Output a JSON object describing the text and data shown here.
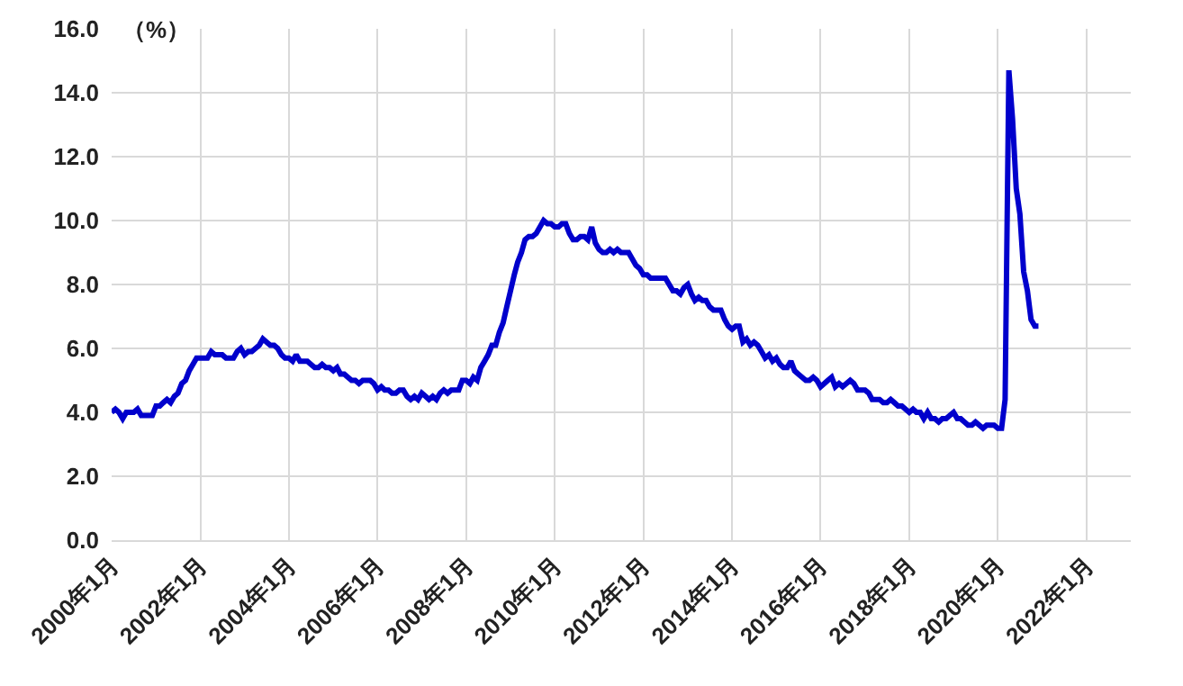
{
  "chart_data": {
    "type": "line",
    "ylabel": "（%）",
    "xlim": [
      "2000-01",
      "2023-01"
    ],
    "xticks": [
      {
        "value": "2000-01",
        "label": "2000年1月"
      },
      {
        "value": "2002-01",
        "label": "2002年1月"
      },
      {
        "value": "2004-01",
        "label": "2004年1月"
      },
      {
        "value": "2006-01",
        "label": "2006年1月"
      },
      {
        "value": "2008-01",
        "label": "2008年1月"
      },
      {
        "value": "2010-01",
        "label": "2010年1月"
      },
      {
        "value": "2012-01",
        "label": "2012年1月"
      },
      {
        "value": "2014-01",
        "label": "2014年1月"
      },
      {
        "value": "2016-01",
        "label": "2016年1月"
      },
      {
        "value": "2018-01",
        "label": "2018年1月"
      },
      {
        "value": "2020-01",
        "label": "2020年1月"
      },
      {
        "value": "2022-01",
        "label": "2022年1月"
      }
    ],
    "ylim": [
      0,
      16
    ],
    "yticks": [
      {
        "value": 0,
        "label": "0.0"
      },
      {
        "value": 2,
        "label": "2.0"
      },
      {
        "value": 4,
        "label": "4.0"
      },
      {
        "value": 6,
        "label": "6.0"
      },
      {
        "value": 8,
        "label": "8.0"
      },
      {
        "value": 10,
        "label": "10.0"
      },
      {
        "value": 12,
        "label": "12.0"
      },
      {
        "value": 14,
        "label": "14.0"
      },
      {
        "value": 16,
        "label": "16.0"
      }
    ],
    "grid": true,
    "marker": "none",
    "line_style": "solid",
    "series": [
      {
        "color": "#0000cc",
        "x": [
          "2000-01",
          "2000-02",
          "2000-03",
          "2000-04",
          "2000-05",
          "2000-06",
          "2000-07",
          "2000-08",
          "2000-09",
          "2000-10",
          "2000-11",
          "2000-12",
          "2001-01",
          "2001-02",
          "2001-03",
          "2001-04",
          "2001-05",
          "2001-06",
          "2001-07",
          "2001-08",
          "2001-09",
          "2001-10",
          "2001-11",
          "2001-12",
          "2002-01",
          "2002-02",
          "2002-03",
          "2002-04",
          "2002-05",
          "2002-06",
          "2002-07",
          "2002-08",
          "2002-09",
          "2002-10",
          "2002-11",
          "2002-12",
          "2003-01",
          "2003-02",
          "2003-03",
          "2003-04",
          "2003-05",
          "2003-06",
          "2003-07",
          "2003-08",
          "2003-09",
          "2003-10",
          "2003-11",
          "2003-12",
          "2004-01",
          "2004-02",
          "2004-03",
          "2004-04",
          "2004-05",
          "2004-06",
          "2004-07",
          "2004-08",
          "2004-09",
          "2004-10",
          "2004-11",
          "2004-12",
          "2005-01",
          "2005-02",
          "2005-03",
          "2005-04",
          "2005-05",
          "2005-06",
          "2005-07",
          "2005-08",
          "2005-09",
          "2005-10",
          "2005-11",
          "2005-12",
          "2006-01",
          "2006-02",
          "2006-03",
          "2006-04",
          "2006-05",
          "2006-06",
          "2006-07",
          "2006-08",
          "2006-09",
          "2006-10",
          "2006-11",
          "2006-12",
          "2007-01",
          "2007-02",
          "2007-03",
          "2007-04",
          "2007-05",
          "2007-06",
          "2007-07",
          "2007-08",
          "2007-09",
          "2007-10",
          "2007-11",
          "2007-12",
          "2008-01",
          "2008-02",
          "2008-03",
          "2008-04",
          "2008-05",
          "2008-06",
          "2008-07",
          "2008-08",
          "2008-09",
          "2008-10",
          "2008-11",
          "2008-12",
          "2009-01",
          "2009-02",
          "2009-03",
          "2009-04",
          "2009-05",
          "2009-06",
          "2009-07",
          "2009-08",
          "2009-09",
          "2009-10",
          "2009-11",
          "2009-12",
          "2010-01",
          "2010-02",
          "2010-03",
          "2010-04",
          "2010-05",
          "2010-06",
          "2010-07",
          "2010-08",
          "2010-09",
          "2010-10",
          "2010-11",
          "2010-12",
          "2011-01",
          "2011-02",
          "2011-03",
          "2011-04",
          "2011-05",
          "2011-06",
          "2011-07",
          "2011-08",
          "2011-09",
          "2011-10",
          "2011-11",
          "2011-12",
          "2012-01",
          "2012-02",
          "2012-03",
          "2012-04",
          "2012-05",
          "2012-06",
          "2012-07",
          "2012-08",
          "2012-09",
          "2012-10",
          "2012-11",
          "2012-12",
          "2013-01",
          "2013-02",
          "2013-03",
          "2013-04",
          "2013-05",
          "2013-06",
          "2013-07",
          "2013-08",
          "2013-09",
          "2013-10",
          "2013-11",
          "2013-12",
          "2014-01",
          "2014-02",
          "2014-03",
          "2014-04",
          "2014-05",
          "2014-06",
          "2014-07",
          "2014-08",
          "2014-09",
          "2014-10",
          "2014-11",
          "2014-12",
          "2015-01",
          "2015-02",
          "2015-03",
          "2015-04",
          "2015-05",
          "2015-06",
          "2015-07",
          "2015-08",
          "2015-09",
          "2015-10",
          "2015-11",
          "2015-12",
          "2016-01",
          "2016-02",
          "2016-03",
          "2016-04",
          "2016-05",
          "2016-06",
          "2016-07",
          "2016-08",
          "2016-09",
          "2016-10",
          "2016-11",
          "2016-12",
          "2017-01",
          "2017-02",
          "2017-03",
          "2017-04",
          "2017-05",
          "2017-06",
          "2017-07",
          "2017-08",
          "2017-09",
          "2017-10",
          "2017-11",
          "2017-12",
          "2018-01",
          "2018-02",
          "2018-03",
          "2018-04",
          "2018-05",
          "2018-06",
          "2018-07",
          "2018-08",
          "2018-09",
          "2018-10",
          "2018-11",
          "2018-12",
          "2019-01",
          "2019-02",
          "2019-03",
          "2019-04",
          "2019-05",
          "2019-06",
          "2019-07",
          "2019-08",
          "2019-09",
          "2019-10",
          "2019-11",
          "2019-12",
          "2020-01",
          "2020-02",
          "2020-03",
          "2020-04",
          "2020-05",
          "2020-06",
          "2020-07",
          "2020-08",
          "2020-09",
          "2020-10",
          "2020-11",
          "2020-12"
        ],
        "values": [
          4.0,
          4.1,
          4.0,
          3.8,
          4.0,
          4.0,
          4.0,
          4.1,
          3.9,
          3.9,
          3.9,
          3.9,
          4.2,
          4.2,
          4.3,
          4.4,
          4.3,
          4.5,
          4.6,
          4.9,
          5.0,
          5.3,
          5.5,
          5.7,
          5.7,
          5.7,
          5.7,
          5.9,
          5.8,
          5.8,
          5.8,
          5.7,
          5.7,
          5.7,
          5.9,
          6.0,
          5.8,
          5.9,
          5.9,
          6.0,
          6.1,
          6.3,
          6.2,
          6.1,
          6.1,
          6.0,
          5.8,
          5.7,
          5.7,
          5.6,
          5.8,
          5.6,
          5.6,
          5.6,
          5.5,
          5.4,
          5.4,
          5.5,
          5.4,
          5.4,
          5.3,
          5.4,
          5.2,
          5.2,
          5.1,
          5.0,
          5.0,
          4.9,
          5.0,
          5.0,
          5.0,
          4.9,
          4.7,
          4.8,
          4.7,
          4.7,
          4.6,
          4.6,
          4.7,
          4.7,
          4.5,
          4.4,
          4.5,
          4.4,
          4.6,
          4.5,
          4.4,
          4.5,
          4.4,
          4.6,
          4.7,
          4.6,
          4.7,
          4.7,
          4.7,
          5.0,
          5.0,
          4.9,
          5.1,
          5.0,
          5.4,
          5.6,
          5.8,
          6.1,
          6.1,
          6.5,
          6.8,
          7.3,
          7.8,
          8.3,
          8.7,
          9.0,
          9.4,
          9.5,
          9.5,
          9.6,
          9.8,
          10.0,
          9.9,
          9.9,
          9.8,
          9.8,
          9.9,
          9.9,
          9.6,
          9.4,
          9.4,
          9.5,
          9.5,
          9.4,
          9.8,
          9.3,
          9.1,
          9.0,
          9.0,
          9.1,
          9.0,
          9.1,
          9.0,
          9.0,
          9.0,
          8.8,
          8.6,
          8.5,
          8.3,
          8.3,
          8.2,
          8.2,
          8.2,
          8.2,
          8.2,
          8.0,
          7.8,
          7.8,
          7.7,
          7.9,
          8.0,
          7.7,
          7.5,
          7.6,
          7.5,
          7.5,
          7.3,
          7.2,
          7.2,
          7.2,
          6.9,
          6.7,
          6.6,
          6.7,
          6.7,
          6.2,
          6.3,
          6.1,
          6.2,
          6.1,
          5.9,
          5.7,
          5.8,
          5.6,
          5.7,
          5.5,
          5.4,
          5.4,
          5.6,
          5.3,
          5.2,
          5.1,
          5.0,
          5.0,
          5.1,
          5.0,
          4.8,
          4.9,
          5.0,
          5.1,
          4.8,
          4.9,
          4.8,
          4.9,
          5.0,
          4.9,
          4.7,
          4.7,
          4.7,
          4.6,
          4.4,
          4.4,
          4.4,
          4.3,
          4.3,
          4.4,
          4.3,
          4.2,
          4.2,
          4.1,
          4.0,
          4.1,
          4.0,
          4.0,
          3.8,
          4.0,
          3.8,
          3.8,
          3.7,
          3.8,
          3.8,
          3.9,
          4.0,
          3.8,
          3.8,
          3.7,
          3.6,
          3.6,
          3.7,
          3.6,
          3.5,
          3.6,
          3.6,
          3.6,
          3.5,
          3.5,
          4.4,
          14.7,
          13.2,
          11.0,
          10.2,
          8.4,
          7.8,
          6.9,
          6.7,
          6.7
        ]
      }
    ]
  }
}
